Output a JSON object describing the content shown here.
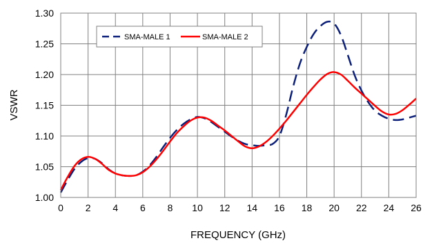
{
  "chart_data": {
    "type": "line",
    "title": "",
    "xlabel": "FREQUENCY (GHz)",
    "ylabel": "VSWR",
    "xlim": [
      0,
      26
    ],
    "ylim": [
      1.0,
      1.3
    ],
    "x_ticks": [
      "0",
      "2",
      "4",
      "6",
      "8",
      "10",
      "12",
      "14",
      "16",
      "18",
      "20",
      "22",
      "24",
      "26"
    ],
    "y_ticks": [
      "1.00",
      "1.05",
      "1.10",
      "1.15",
      "1.20",
      "1.25",
      "1.30"
    ],
    "grid": true,
    "legend_position": "top-left",
    "series": [
      {
        "name": "SMA-MALE 1",
        "color": "#0b1f7a",
        "style": "dashed",
        "x": [
          0,
          0.5,
          1,
          1.5,
          2,
          2.5,
          3,
          3.5,
          4,
          4.5,
          5,
          5.5,
          6,
          6.5,
          7,
          7.5,
          8,
          8.5,
          9,
          9.5,
          10,
          10.5,
          11,
          11.5,
          12,
          12.5,
          13,
          13.5,
          14,
          14.5,
          15,
          15.5,
          16,
          16.5,
          17,
          17.5,
          18,
          18.5,
          19,
          19.5,
          20,
          20.5,
          21,
          21.5,
          22,
          22.5,
          23,
          23.5,
          24,
          24.5,
          25,
          25.5,
          26
        ],
        "y": [
          1.008,
          1.028,
          1.046,
          1.058,
          1.064,
          1.063,
          1.056,
          1.046,
          1.039,
          1.036,
          1.035,
          1.036,
          1.042,
          1.052,
          1.066,
          1.082,
          1.097,
          1.11,
          1.12,
          1.127,
          1.131,
          1.129,
          1.123,
          1.115,
          1.107,
          1.099,
          1.092,
          1.087,
          1.085,
          1.084,
          1.085,
          1.087,
          1.1,
          1.135,
          1.18,
          1.218,
          1.245,
          1.266,
          1.279,
          1.286,
          1.283,
          1.264,
          1.232,
          1.199,
          1.174,
          1.155,
          1.141,
          1.133,
          1.128,
          1.126,
          1.127,
          1.13,
          1.133
        ]
      },
      {
        "name": "SMA-MALE 2",
        "color": "#ff0000",
        "style": "solid",
        "x": [
          0,
          0.5,
          1,
          1.5,
          2,
          2.5,
          3,
          3.5,
          4,
          4.5,
          5,
          5.5,
          6,
          6.5,
          7,
          7.5,
          8,
          8.5,
          9,
          9.5,
          10,
          10.5,
          11,
          11.5,
          12,
          12.5,
          13,
          13.5,
          14,
          14.5,
          15,
          15.5,
          16,
          16.5,
          17,
          17.5,
          18,
          18.5,
          19,
          19.5,
          20,
          20.5,
          21,
          21.5,
          22,
          22.5,
          23,
          23.5,
          24,
          24.5,
          25,
          25.5,
          26
        ],
        "y": [
          1.012,
          1.033,
          1.051,
          1.062,
          1.066,
          1.063,
          1.055,
          1.045,
          1.039,
          1.036,
          1.035,
          1.036,
          1.041,
          1.05,
          1.062,
          1.076,
          1.091,
          1.105,
          1.116,
          1.125,
          1.13,
          1.13,
          1.125,
          1.117,
          1.109,
          1.1,
          1.091,
          1.083,
          1.08,
          1.083,
          1.09,
          1.1,
          1.112,
          1.125,
          1.139,
          1.153,
          1.167,
          1.18,
          1.192,
          1.201,
          1.204,
          1.2,
          1.19,
          1.179,
          1.169,
          1.159,
          1.149,
          1.14,
          1.135,
          1.136,
          1.142,
          1.151,
          1.161
        ]
      }
    ]
  }
}
